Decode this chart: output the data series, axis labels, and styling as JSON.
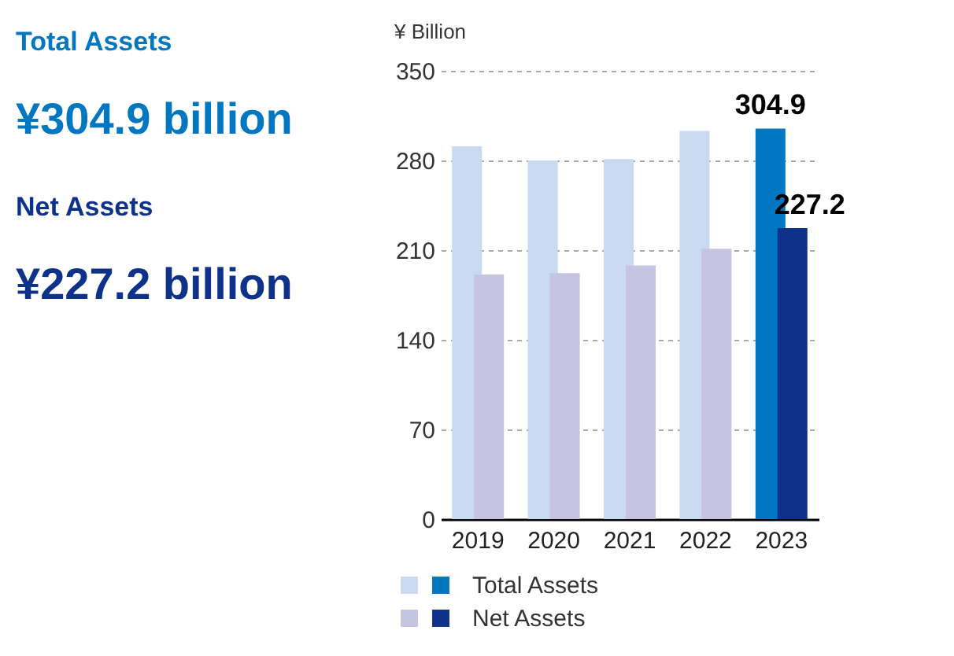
{
  "chart_data": {
    "type": "bar",
    "ylabel": "¥ Billion",
    "categories": [
      "2019",
      "2020",
      "2021",
      "2022",
      "2023"
    ],
    "series": [
      {
        "name": "Total Assets",
        "colors": [
          "#c9daf0",
          "#c9daf0",
          "#c9daf0",
          "#c9daf0",
          "#0077c0"
        ],
        "values": [
          291,
          280,
          281,
          303,
          304.9
        ],
        "value_labels": [
          null,
          null,
          null,
          null,
          "304.9"
        ]
      },
      {
        "name": "Net Assets",
        "colors": [
          "#c6c4e0",
          "#c6c4e0",
          "#c6c4e0",
          "#c6c4e0",
          "#0e318a"
        ],
        "values": [
          191,
          192,
          198,
          211,
          227.2
        ],
        "value_labels": [
          null,
          null,
          null,
          null,
          "227.2"
        ]
      }
    ],
    "ylim": [
      0,
      350
    ],
    "yticks": [
      0,
      70,
      140,
      210,
      280,
      350
    ],
    "grid": "y",
    "legend": "bottom",
    "annotations": [
      "Total Assets",
      "¥304.9 billion",
      "Net Assets",
      "¥227.2 billion"
    ]
  }
}
